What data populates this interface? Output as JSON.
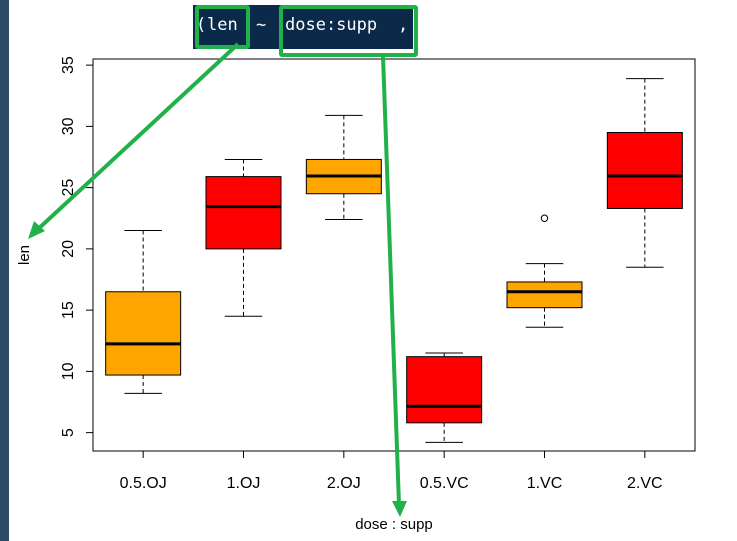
{
  "code": {
    "paren": "(",
    "response": "len",
    "tilde": "~",
    "predictor": "dose:supp",
    "comma": ","
  },
  "colors": {
    "oj": "#ffa500",
    "vc": "#ff0000",
    "annotation": "#22b04b",
    "code_bg": "#0b2a4a"
  },
  "chart_data": {
    "type": "box",
    "title": "",
    "xlabel": "dose : supp",
    "ylabel": "len",
    "ylim": [
      3.5,
      35.5
    ],
    "yticks": [
      5,
      10,
      15,
      20,
      25,
      30,
      35
    ],
    "categories": [
      "0.5.OJ",
      "1.OJ",
      "2.OJ",
      "0.5.VC",
      "1.VC",
      "2.VC"
    ],
    "fill_colors": [
      "#ffa500",
      "#ff0000",
      "#ffa500",
      "#ff0000",
      "#ffa500",
      "#ff0000"
    ],
    "boxes": [
      {
        "min": 8.2,
        "q1": 9.7,
        "median": 12.25,
        "q3": 16.5,
        "max": 21.5,
        "outliers": []
      },
      {
        "min": 14.5,
        "q1": 20.0,
        "median": 23.45,
        "q3": 25.9,
        "max": 27.3,
        "outliers": []
      },
      {
        "min": 22.4,
        "q1": 24.5,
        "median": 25.95,
        "q3": 27.3,
        "max": 30.9,
        "outliers": []
      },
      {
        "min": 4.2,
        "q1": 5.8,
        "median": 7.15,
        "q3": 11.2,
        "max": 11.5,
        "outliers": []
      },
      {
        "min": 13.6,
        "q1": 15.2,
        "median": 16.5,
        "q3": 17.3,
        "max": 18.8,
        "outliers": [
          22.5
        ]
      },
      {
        "min": 18.5,
        "q1": 23.3,
        "median": 25.95,
        "q3": 29.5,
        "max": 33.9,
        "outliers": []
      }
    ]
  }
}
